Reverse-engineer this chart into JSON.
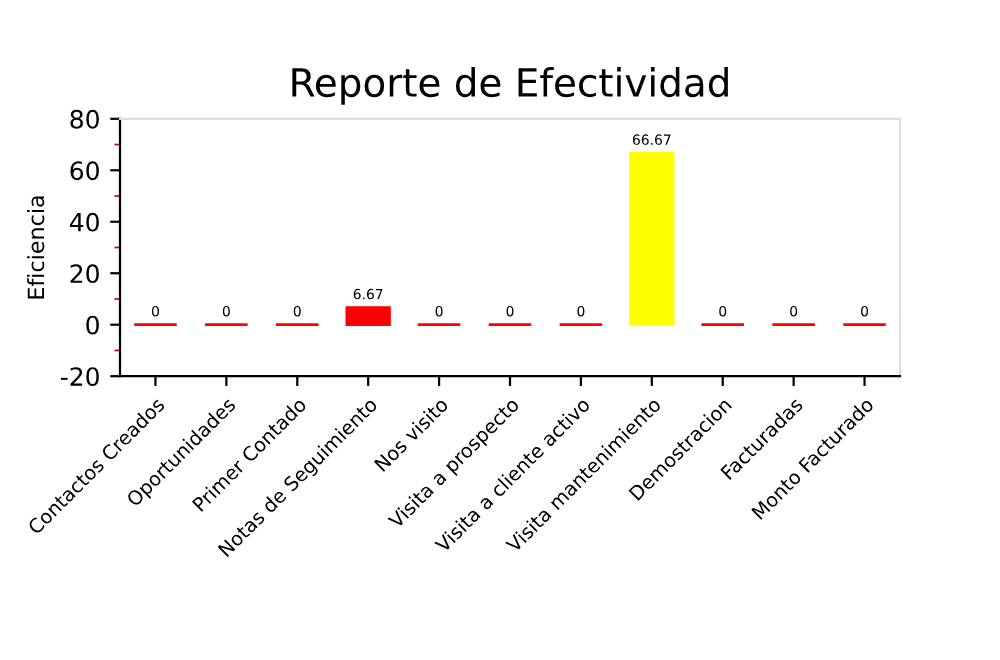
{
  "chart_data": {
    "type": "bar",
    "title": "Reporte de Efectividad",
    "ylabel": "Eficiencia",
    "categories": [
      "Contactos Creados",
      "Oportunidades",
      "Primer Contado",
      "Notas de Seguimiento",
      "Nos visito",
      "Visita a prospecto",
      "Visita a cliente activo",
      "Visita mantenimiento",
      "Demostracion",
      "Facturadas",
      "Monto Facturado"
    ],
    "values": [
      0,
      0,
      0,
      6.67,
      0,
      0,
      0,
      66.67,
      0,
      0,
      0
    ],
    "colors": [
      "#ff0000",
      "#ff0000",
      "#ff0000",
      "#ff0000",
      "#ff0000",
      "#ff0000",
      "#ff0000",
      "#ffff00",
      "#ff0000",
      "#ff0000",
      "#ff0000"
    ],
    "value_labels": [
      "0",
      "0",
      "0",
      "6.67",
      "0",
      "0",
      "0",
      "66.67",
      "0",
      "0",
      "0"
    ],
    "ylim": [
      -20,
      80
    ],
    "yticks": [
      -20,
      0,
      20,
      40,
      60,
      80
    ],
    "grid": false,
    "legend": false
  }
}
